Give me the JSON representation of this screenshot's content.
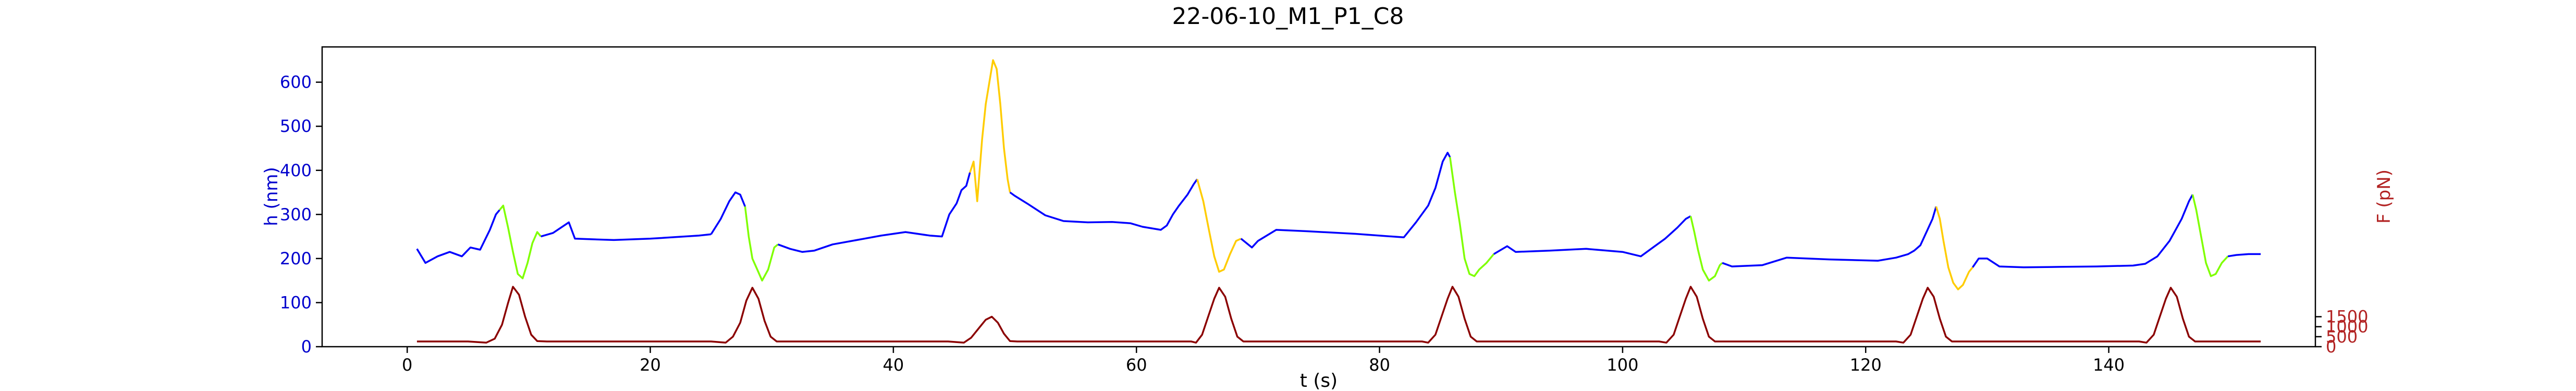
{
  "chart_data": {
    "type": "line",
    "title": "22-06-10_M1_P1_C8",
    "xlabel": "t (s)",
    "ylabel_left": "h (nm)",
    "ylabel_right": "F (pN)",
    "xlim": [
      -7,
      157
    ],
    "ylim_left": [
      0,
      680
    ],
    "ylim_right": [
      0,
      15000
    ],
    "x_ticks": [
      0,
      20,
      40,
      60,
      80,
      100,
      120,
      140
    ],
    "x_tick_labels": [
      "0",
      "20",
      "40",
      "60",
      "80",
      "100",
      "120",
      "140"
    ],
    "y_left_ticks": [
      0,
      100,
      200,
      300,
      400,
      500,
      600
    ],
    "y_left_tick_labels": [
      "0",
      "100",
      "200",
      "300",
      "400",
      "500",
      "600"
    ],
    "y_right_ticks": [
      0,
      500,
      1000,
      1500
    ],
    "y_right_tick_labels": [
      "0",
      "500",
      "1000",
      "1500"
    ],
    "grid": false,
    "colors": {
      "height_base": "#0000ff",
      "height_low_force": "#7fff00",
      "height_high_force": "#ffcc00",
      "force": "#8b0000",
      "left_axis": "#0000cd",
      "right_axis": "#b22222"
    },
    "height_series": [
      {
        "color": "#0000ff",
        "points": [
          [
            0.8,
            222
          ],
          [
            1.5,
            190
          ],
          [
            2.5,
            205
          ],
          [
            3.5,
            215
          ],
          [
            4.5,
            205
          ],
          [
            5.2,
            225
          ],
          [
            6.0,
            220
          ],
          [
            6.8,
            265
          ],
          [
            7.3,
            300
          ],
          [
            7.6,
            310
          ]
        ]
      },
      {
        "color": "#7fff00",
        "points": [
          [
            7.6,
            310
          ],
          [
            7.9,
            320
          ],
          [
            8.3,
            270
          ],
          [
            8.7,
            215
          ],
          [
            9.1,
            165
          ],
          [
            9.5,
            155
          ],
          [
            9.9,
            190
          ],
          [
            10.3,
            235
          ],
          [
            10.7,
            260
          ],
          [
            11.0,
            250
          ]
        ]
      },
      {
        "color": "#0000ff",
        "points": [
          [
            11.0,
            250
          ],
          [
            12.0,
            258
          ],
          [
            13.3,
            282
          ],
          [
            13.8,
            245
          ],
          [
            17.0,
            242
          ],
          [
            20.0,
            245
          ],
          [
            24.0,
            252
          ],
          [
            25.0,
            255
          ]
        ]
      },
      {
        "color": "#0000ff",
        "points": [
          [
            25.0,
            255
          ],
          [
            25.8,
            290
          ],
          [
            26.5,
            330
          ],
          [
            27.0,
            350
          ],
          [
            27.4,
            345
          ],
          [
            27.8,
            318
          ]
        ]
      },
      {
        "color": "#7fff00",
        "points": [
          [
            27.8,
            318
          ],
          [
            28.1,
            250
          ],
          [
            28.4,
            200
          ],
          [
            28.8,
            175
          ],
          [
            29.2,
            150
          ],
          [
            29.7,
            175
          ],
          [
            30.2,
            225
          ],
          [
            30.5,
            232
          ]
        ]
      },
      {
        "color": "#0000ff",
        "points": [
          [
            30.5,
            232
          ],
          [
            31.5,
            222
          ],
          [
            32.5,
            215
          ],
          [
            33.5,
            218
          ],
          [
            35.0,
            232
          ],
          [
            37.0,
            242
          ],
          [
            39.0,
            252
          ],
          [
            41.0,
            260
          ],
          [
            43.0,
            252
          ],
          [
            44.0,
            250
          ],
          [
            44.6,
            300
          ],
          [
            45.2,
            325
          ],
          [
            45.6,
            355
          ],
          [
            46.0,
            365
          ],
          [
            46.3,
            395
          ]
        ]
      },
      {
        "color": "#ffcc00",
        "points": [
          [
            46.3,
            395
          ],
          [
            46.6,
            420
          ],
          [
            46.9,
            330
          ],
          [
            47.3,
            470
          ],
          [
            47.6,
            550
          ],
          [
            47.9,
            600
          ],
          [
            48.2,
            650
          ],
          [
            48.5,
            630
          ],
          [
            48.8,
            550
          ],
          [
            49.1,
            450
          ],
          [
            49.4,
            380
          ],
          [
            49.6,
            350
          ]
        ]
      },
      {
        "color": "#0000ff",
        "points": [
          [
            49.6,
            350
          ],
          [
            50.0,
            342
          ],
          [
            51.0,
            325
          ],
          [
            52.5,
            298
          ],
          [
            54.0,
            285
          ],
          [
            56.0,
            282
          ],
          [
            58.0,
            283
          ],
          [
            59.5,
            280
          ],
          [
            60.5,
            272
          ],
          [
            62.0,
            265
          ],
          [
            62.5,
            275
          ],
          [
            63.0,
            300
          ],
          [
            63.5,
            320
          ],
          [
            64.2,
            345
          ],
          [
            64.7,
            368
          ],
          [
            65.0,
            380
          ]
        ]
      },
      {
        "color": "#ffcc00",
        "points": [
          [
            65.0,
            380
          ],
          [
            65.5,
            330
          ],
          [
            66.0,
            260
          ],
          [
            66.4,
            205
          ],
          [
            66.8,
            170
          ],
          [
            67.2,
            175
          ],
          [
            67.7,
            210
          ],
          [
            68.2,
            240
          ],
          [
            68.6,
            245
          ]
        ]
      },
      {
        "color": "#0000ff",
        "points": [
          [
            68.6,
            245
          ],
          [
            69.5,
            225
          ],
          [
            70.0,
            240
          ],
          [
            71.5,
            265
          ],
          [
            74.0,
            262
          ],
          [
            78.0,
            256
          ],
          [
            82.0,
            248
          ],
          [
            83.0,
            282
          ],
          [
            84.0,
            320
          ],
          [
            84.6,
            360
          ],
          [
            85.2,
            420
          ],
          [
            85.6,
            440
          ],
          [
            85.8,
            430
          ]
        ]
      },
      {
        "color": "#7fff00",
        "points": [
          [
            85.8,
            430
          ],
          [
            86.2,
            350
          ],
          [
            86.6,
            280
          ],
          [
            87.0,
            200
          ],
          [
            87.4,
            165
          ],
          [
            87.8,
            160
          ],
          [
            88.2,
            175
          ],
          [
            88.8,
            190
          ],
          [
            89.4,
            210
          ]
        ]
      },
      {
        "color": "#0000ff",
        "points": [
          [
            89.4,
            210
          ],
          [
            90.5,
            228
          ],
          [
            91.2,
            215
          ],
          [
            94.0,
            218
          ],
          [
            97.0,
            222
          ],
          [
            100.0,
            215
          ],
          [
            101.5,
            205
          ],
          [
            102.5,
            225
          ],
          [
            103.5,
            245
          ],
          [
            104.5,
            270
          ],
          [
            105.2,
            290
          ],
          [
            105.6,
            296
          ]
        ]
      },
      {
        "color": "#7fff00",
        "points": [
          [
            105.6,
            296
          ],
          [
            105.9,
            260
          ],
          [
            106.2,
            220
          ],
          [
            106.6,
            175
          ],
          [
            107.1,
            150
          ],
          [
            107.6,
            160
          ],
          [
            108.0,
            185
          ],
          [
            108.2,
            190
          ]
        ]
      },
      {
        "color": "#0000ff",
        "points": [
          [
            108.2,
            190
          ],
          [
            109.0,
            182
          ],
          [
            111.5,
            185
          ],
          [
            113.5,
            202
          ],
          [
            117.0,
            198
          ],
          [
            121.0,
            195
          ],
          [
            122.5,
            202
          ],
          [
            123.5,
            210
          ],
          [
            124.0,
            218
          ],
          [
            124.5,
            230
          ],
          [
            125.0,
            260
          ],
          [
            125.5,
            290
          ],
          [
            125.8,
            318
          ]
        ]
      },
      {
        "color": "#ffcc00",
        "points": [
          [
            125.8,
            318
          ],
          [
            126.1,
            290
          ],
          [
            126.4,
            240
          ],
          [
            126.8,
            180
          ],
          [
            127.2,
            145
          ],
          [
            127.6,
            130
          ],
          [
            128.0,
            140
          ],
          [
            128.5,
            170
          ],
          [
            128.8,
            180
          ]
        ]
      },
      {
        "color": "#0000ff",
        "points": [
          [
            128.8,
            180
          ],
          [
            129.3,
            200
          ],
          [
            130.0,
            200
          ],
          [
            131.0,
            182
          ],
          [
            133.0,
            180
          ],
          [
            136.0,
            181
          ],
          [
            139.0,
            182
          ],
          [
            142.0,
            184
          ],
          [
            143.0,
            188
          ],
          [
            144.0,
            205
          ],
          [
            145.0,
            240
          ],
          [
            146.0,
            290
          ],
          [
            146.6,
            330
          ],
          [
            146.9,
            345
          ]
        ]
      },
      {
        "color": "#7fff00",
        "points": [
          [
            146.9,
            345
          ],
          [
            147.2,
            310
          ],
          [
            147.6,
            250
          ],
          [
            148.0,
            190
          ],
          [
            148.4,
            160
          ],
          [
            148.8,
            165
          ],
          [
            149.3,
            190
          ],
          [
            149.8,
            205
          ]
        ]
      },
      {
        "color": "#0000ff",
        "points": [
          [
            149.8,
            205
          ],
          [
            150.5,
            208
          ],
          [
            151.5,
            210
          ],
          [
            152.5,
            210
          ]
        ]
      }
    ],
    "force_series": {
      "color": "#8b0000",
      "points": [
        [
          0.8,
          260
        ],
        [
          3.5,
          260
        ],
        [
          5.0,
          260
        ],
        [
          6.5,
          200
        ],
        [
          7.2,
          400
        ],
        [
          7.8,
          1100
        ],
        [
          8.3,
          2200
        ],
        [
          8.7,
          3000
        ],
        [
          9.2,
          2600
        ],
        [
          9.7,
          1500
        ],
        [
          10.2,
          600
        ],
        [
          10.7,
          280
        ],
        [
          11.5,
          260
        ],
        [
          25.0,
          260
        ],
        [
          26.2,
          200
        ],
        [
          26.8,
          500
        ],
        [
          27.4,
          1200
        ],
        [
          27.9,
          2300
        ],
        [
          28.4,
          2950
        ],
        [
          28.9,
          2400
        ],
        [
          29.4,
          1300
        ],
        [
          29.9,
          500
        ],
        [
          30.4,
          260
        ],
        [
          31.0,
          260
        ],
        [
          44.5,
          260
        ],
        [
          45.8,
          200
        ],
        [
          46.4,
          450
        ],
        [
          47.0,
          900
        ],
        [
          47.6,
          1350
        ],
        [
          48.1,
          1500
        ],
        [
          48.6,
          1200
        ],
        [
          49.1,
          650
        ],
        [
          49.6,
          280
        ],
        [
          50.2,
          260
        ],
        [
          64.5,
          260
        ],
        [
          64.9,
          200
        ],
        [
          65.4,
          600
        ],
        [
          65.9,
          1500
        ],
        [
          66.4,
          2400
        ],
        [
          66.8,
          2950
        ],
        [
          67.3,
          2500
        ],
        [
          67.8,
          1400
        ],
        [
          68.3,
          500
        ],
        [
          68.8,
          260
        ],
        [
          69.5,
          260
        ],
        [
          83.5,
          260
        ],
        [
          84.0,
          200
        ],
        [
          84.6,
          600
        ],
        [
          85.1,
          1500
        ],
        [
          85.6,
          2400
        ],
        [
          86.0,
          3000
        ],
        [
          86.5,
          2500
        ],
        [
          87.0,
          1400
        ],
        [
          87.5,
          500
        ],
        [
          88.0,
          260
        ],
        [
          88.5,
          260
        ],
        [
          103.0,
          260
        ],
        [
          103.6,
          200
        ],
        [
          104.2,
          600
        ],
        [
          104.7,
          1500
        ],
        [
          105.2,
          2400
        ],
        [
          105.6,
          3000
        ],
        [
          106.1,
          2500
        ],
        [
          106.6,
          1400
        ],
        [
          107.1,
          500
        ],
        [
          107.6,
          260
        ],
        [
          108.2,
          260
        ],
        [
          122.5,
          260
        ],
        [
          123.1,
          200
        ],
        [
          123.7,
          600
        ],
        [
          124.2,
          1500
        ],
        [
          124.7,
          2400
        ],
        [
          125.1,
          2950
        ],
        [
          125.6,
          2500
        ],
        [
          126.1,
          1400
        ],
        [
          126.6,
          500
        ],
        [
          127.1,
          260
        ],
        [
          127.7,
          260
        ],
        [
          142.5,
          260
        ],
        [
          143.1,
          200
        ],
        [
          143.7,
          600
        ],
        [
          144.2,
          1500
        ],
        [
          144.7,
          2400
        ],
        [
          145.1,
          2950
        ],
        [
          145.6,
          2500
        ],
        [
          146.1,
          1400
        ],
        [
          146.6,
          500
        ],
        [
          147.1,
          260
        ],
        [
          150.0,
          260
        ],
        [
          152.5,
          260
        ]
      ]
    }
  }
}
